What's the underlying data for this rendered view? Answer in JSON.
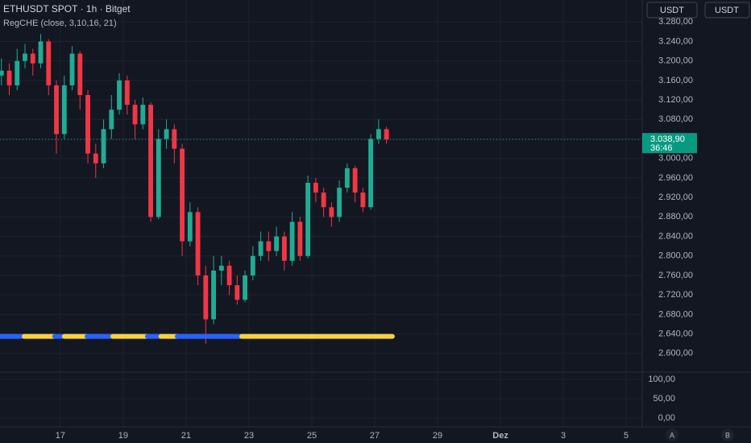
{
  "chart_data": [
    {
      "type": "candlestick",
      "title": "ETHUSDT SPOT · 1h · Bitget",
      "indicator": {
        "name": "RegCHE (close, 3,10,16, 21)",
        "value": 2635,
        "segments": [
          {
            "color": "#2962ff",
            "x": [
              15.08,
              15.85
            ]
          },
          {
            "color": "#f7d23e",
            "x": [
              15.85,
              16.82
            ]
          },
          {
            "color": "#2962ff",
            "x": [
              16.82,
              17.13
            ]
          },
          {
            "color": "#f7d23e",
            "x": [
              17.13,
              17.85
            ]
          },
          {
            "color": "#2962ff",
            "x": [
              17.85,
              18.67
            ]
          },
          {
            "color": "#f7d23e",
            "x": [
              18.67,
              19.77
            ]
          },
          {
            "color": "#2962ff",
            "x": [
              19.77,
              20.2
            ]
          },
          {
            "color": "#f7d23e",
            "x": [
              20.2,
              20.72
            ]
          },
          {
            "color": "#2962ff",
            "x": [
              20.72,
              22.77
            ]
          },
          {
            "color": "#f7d23e",
            "x": [
              22.77,
              27.56
            ]
          }
        ]
      },
      "currency_buttons": [
        "USDT",
        "USDT"
      ],
      "last_price": {
        "value": 3038.9,
        "label": "3.038,90"
      },
      "countdown": "36:46",
      "up_color": "#22ab94",
      "down_color": "#f23645",
      "x": [
        15.125,
        15.375,
        15.625,
        15.875,
        16.125,
        16.375,
        16.625,
        16.875,
        17.125,
        17.375,
        17.625,
        17.875,
        18.125,
        18.375,
        18.625,
        18.875,
        19.125,
        19.375,
        19.625,
        19.875,
        20.125,
        20.375,
        20.625,
        20.875,
        21.125,
        21.375,
        21.625,
        21.875,
        22.125,
        22.375,
        22.625,
        22.875,
        23.125,
        23.375,
        23.625,
        23.875,
        24.125,
        24.375,
        24.625,
        24.875,
        25.125,
        25.375,
        25.625,
        25.875,
        26.125,
        26.375,
        26.625,
        26.875,
        27.125,
        27.375
      ],
      "open": [
        3170,
        3180,
        3150,
        3200,
        3215,
        3195,
        3240,
        3150,
        3050,
        3150,
        3215,
        3130,
        3010,
        2990,
        3060,
        3100,
        3160,
        3110,
        3070,
        3110,
        2880,
        3040,
        3060,
        3020,
        2830,
        2890,
        2760,
        2670,
        2770,
        2780,
        2740,
        2710,
        2760,
        2800,
        2830,
        2810,
        2840,
        2790,
        2870,
        2800,
        2950,
        2930,
        2900,
        2880,
        2940,
        2980,
        2930,
        2900,
        3040,
        3060
      ],
      "high": [
        3205,
        3195,
        3225,
        3235,
        3225,
        3255,
        3245,
        3160,
        3170,
        3230,
        3220,
        3140,
        3030,
        3080,
        3130,
        3175,
        3170,
        3120,
        3125,
        3115,
        3060,
        3080,
        3070,
        3030,
        2910,
        2900,
        2780,
        2800,
        2800,
        2790,
        2760,
        2770,
        2820,
        2850,
        2850,
        2860,
        2850,
        2890,
        2880,
        2965,
        2960,
        2940,
        2910,
        2955,
        2990,
        2985,
        2940,
        3050,
        3080,
        3065
      ],
      "low": [
        3150,
        3130,
        3140,
        3185,
        3170,
        3185,
        3130,
        3010,
        3040,
        3140,
        3100,
        2990,
        2960,
        2980,
        3040,
        3090,
        3090,
        3040,
        3060,
        2870,
        2875,
        3020,
        2990,
        2800,
        2820,
        2740,
        2620,
        2660,
        2740,
        2720,
        2700,
        2705,
        2750,
        2790,
        2790,
        2800,
        2770,
        2780,
        2790,
        2795,
        2910,
        2880,
        2860,
        2870,
        2930,
        2910,
        2890,
        2895,
        3030,
        3030
      ],
      "close": [
        3180,
        3150,
        3200,
        3215,
        3195,
        3240,
        3150,
        3050,
        3150,
        3215,
        3130,
        3010,
        2990,
        3060,
        3100,
        3160,
        3110,
        3070,
        3110,
        2880,
        3040,
        3060,
        3020,
        2830,
        2890,
        2760,
        2670,
        2770,
        2780,
        2740,
        2710,
        2760,
        2800,
        2830,
        2810,
        2840,
        2790,
        2870,
        2800,
        2950,
        2930,
        2900,
        2880,
        2940,
        2980,
        2930,
        2900,
        3040,
        3060,
        3038.9
      ],
      "xlim": [
        15.08,
        35.51
      ],
      "xticks": [
        17,
        19,
        21,
        23,
        25,
        27,
        29,
        {
          "value": 31,
          "label": "Dez"
        },
        {
          "value": 33,
          "label": "3"
        },
        {
          "value": 35,
          "label": "5"
        }
      ],
      "ylim": [
        2565,
        3325
      ],
      "yticks": [
        {
          "value": 2600,
          "label": "2.600,00"
        },
        {
          "value": 2640,
          "label": "2.640,00"
        },
        {
          "value": 2680,
          "label": "2.680,00"
        },
        {
          "value": 2720,
          "label": "2.720,00"
        },
        {
          "value": 2760,
          "label": "2.760,00"
        },
        {
          "value": 2800,
          "label": "2.800,00"
        },
        {
          "value": 2840,
          "label": "2.840,00"
        },
        {
          "value": 2880,
          "label": "2.880,00"
        },
        {
          "value": 2920,
          "label": "2.920,00"
        },
        {
          "value": 2960,
          "label": "2.960,00"
        },
        {
          "value": 3000,
          "label": "3.000,00"
        },
        {
          "value": 3040,
          "label": "3.040,00"
        },
        {
          "value": 3080,
          "label": "3.080,00"
        },
        {
          "value": 3120,
          "label": "3.120,00"
        },
        {
          "value": 3160,
          "label": "3.160,00"
        },
        {
          "value": 3200,
          "label": "3.200,00"
        },
        {
          "value": 3240,
          "label": "3.240,00"
        },
        {
          "value": 3280,
          "label": "3.280,00"
        }
      ],
      "grid": true,
      "footer_buttons": [
        "A",
        "B"
      ]
    },
    {
      "type": "pane",
      "ylim": [
        -23,
        117
      ],
      "yticks": [
        {
          "value": 0,
          "label": "0,00"
        },
        {
          "value": 50,
          "label": "50,00"
        },
        {
          "value": 100,
          "label": "100,00"
        }
      ],
      "grid": true
    }
  ]
}
